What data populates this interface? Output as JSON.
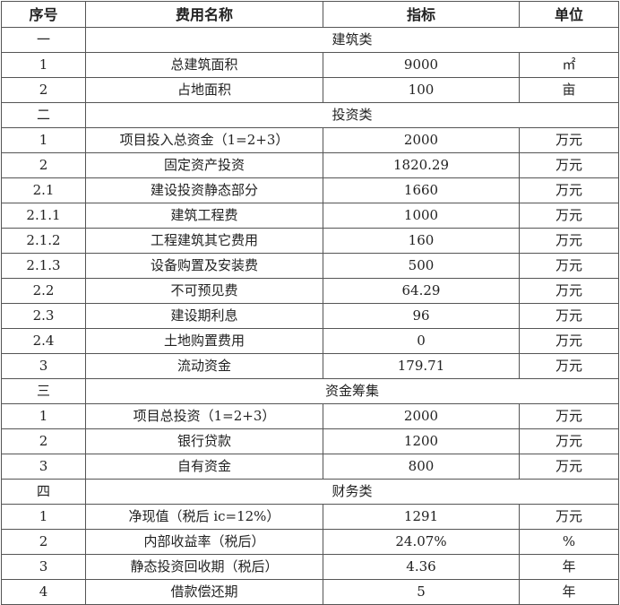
{
  "header": [
    "序号",
    "费用名称",
    "指标",
    "单位"
  ],
  "rows": [
    {
      "section": true,
      "no": "一",
      "name": "建筑类"
    },
    {
      "no": "1",
      "name": "总建筑面积",
      "value": "9000",
      "unit": "㎡"
    },
    {
      "no": "2",
      "name": "占地面积",
      "value": "100",
      "unit": "亩"
    },
    {
      "section": true,
      "no": "二",
      "name": "投资类"
    },
    {
      "no": "1",
      "name": "项目投入总资金（1=2+3）",
      "value": "2000",
      "unit": "万元"
    },
    {
      "no": "2",
      "name": "固定资产投资",
      "value": "1820.29",
      "unit": "万元"
    },
    {
      "no": "2.1",
      "name": "建设投资静态部分",
      "value": "1660",
      "unit": "万元"
    },
    {
      "no": "2.1.1",
      "name": "建筑工程费",
      "value": "1000",
      "unit": "万元"
    },
    {
      "no": "2.1.2",
      "name": "工程建筑其它费用",
      "value": "160",
      "unit": "万元"
    },
    {
      "no": "2.1.3",
      "name": "设备购置及安装费",
      "value": "500",
      "unit": "万元"
    },
    {
      "no": "2.2",
      "name": "不可预见费",
      "value": "64.29",
      "unit": "万元"
    },
    {
      "no": "2.3",
      "name": "建设期利息",
      "value": "96",
      "unit": "万元"
    },
    {
      "no": "2.4",
      "name": "土地购置费用",
      "value": "0",
      "unit": "万元"
    },
    {
      "no": "3",
      "name": "流动资金",
      "value": "179.71",
      "unit": "万元"
    },
    {
      "section": true,
      "no": "三",
      "name": "资金筹集"
    },
    {
      "no": "1",
      "name": "项目总投资（1=2+3）",
      "value": "2000",
      "unit": "万元"
    },
    {
      "no": "2",
      "name": "银行贷款",
      "value": "1200",
      "unit": "万元"
    },
    {
      "no": "3",
      "name": "自有资金",
      "value": "800",
      "unit": "万元"
    },
    {
      "section": true,
      "no": "四",
      "name": "财务类"
    },
    {
      "no": "1",
      "name": "净现值（税后 ic=12%）",
      "value": "1291",
      "unit": "万元"
    },
    {
      "no": "2",
      "name": "内部收益率（税后）",
      "value": "24.07%",
      "unit": "%"
    },
    {
      "no": "3",
      "name": "静态投资回收期（税后）",
      "value": "4.36",
      "unit": "年"
    },
    {
      "no": "4",
      "name": "借款偿还期",
      "value": "5",
      "unit": "年"
    }
  ]
}
